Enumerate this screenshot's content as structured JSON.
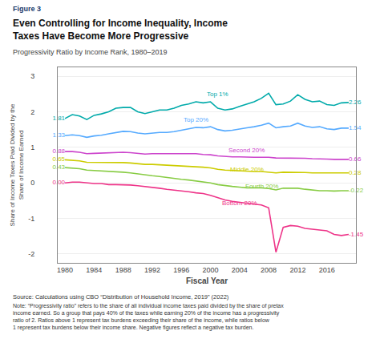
{
  "chart_data": {
    "type": "line",
    "figure_label": "Figure 3",
    "title": "Even Controlling for Income Inequality, Income\nTaxes Have Become More Progressive",
    "subtitle": "Progressivity Ratio by Income Rank, 1980–2019",
    "xlabel": "Fiscal Year",
    "ylabel": "Share of Income Taxes Paid Divided by the\nShare of Income Earned",
    "source": "Source: Calculations using CBO “Distribution of Household Income, 2019” (2022)",
    "note": "Note: “Progressivity ratio” refers to the share of all individual income taxes paid divided by the share of pretax\nincome earned. So a group that pays 40% of the taxes while earning 20% of the income has a progressivity\nratio of 2. Ratios above 1 represent tax burdens exceeding their share of the income, while ratios below\n1 represent tax burdens below their income share. Negative figures reflect a negative tax burden.",
    "x": [
      1980,
      1981,
      1982,
      1983,
      1984,
      1985,
      1986,
      1987,
      1988,
      1989,
      1990,
      1991,
      1992,
      1993,
      1994,
      1995,
      1996,
      1997,
      1998,
      1999,
      2000,
      2001,
      2002,
      2003,
      2004,
      2005,
      2006,
      2007,
      2008,
      2009,
      2010,
      2011,
      2012,
      2013,
      2014,
      2015,
      2016,
      2017,
      2018,
      2019
    ],
    "series": [
      {
        "name": "Top 1%",
        "color": "#00AAAA",
        "values": [
          1.81,
          1.92,
          1.88,
          1.78,
          1.9,
          1.94,
          2.0,
          2.1,
          2.12,
          2.12,
          2.0,
          1.95,
          2.0,
          2.05,
          2.05,
          2.1,
          2.18,
          2.22,
          2.28,
          2.25,
          2.28,
          2.1,
          2.05,
          2.08,
          2.15,
          2.22,
          2.28,
          2.38,
          2.52,
          2.2,
          2.22,
          2.3,
          2.48,
          2.35,
          2.28,
          2.3,
          2.2,
          2.18,
          2.25,
          2.26
        ],
        "value_labels": [
          "1.81",
          null,
          null,
          null,
          null,
          null,
          null,
          null,
          null,
          null,
          null,
          null,
          null,
          null,
          null,
          null,
          null,
          null,
          null,
          null,
          null,
          null,
          null,
          null,
          null,
          null,
          null,
          null,
          null,
          null,
          null,
          null,
          null,
          null,
          null,
          null,
          null,
          null,
          null,
          "2.26"
        ]
      },
      {
        "name": "Top 20%",
        "color": "#55AAFF",
        "values": [
          1.33,
          1.35,
          1.33,
          1.28,
          1.32,
          1.34,
          1.38,
          1.42,
          1.45,
          1.44,
          1.4,
          1.38,
          1.4,
          1.42,
          1.42,
          1.44,
          1.48,
          1.52,
          1.56,
          1.55,
          1.58,
          1.5,
          1.46,
          1.48,
          1.52,
          1.55,
          1.58,
          1.62,
          1.68,
          1.55,
          1.58,
          1.6,
          1.68,
          1.6,
          1.56,
          1.58,
          1.52,
          1.5,
          1.54,
          1.54
        ],
        "value_labels": [
          "1.33",
          null,
          null,
          null,
          null,
          null,
          null,
          null,
          null,
          null,
          null,
          null,
          null,
          null,
          null,
          null,
          null,
          null,
          null,
          null,
          null,
          null,
          null,
          null,
          null,
          null,
          null,
          null,
          null,
          null,
          null,
          null,
          null,
          null,
          null,
          null,
          null,
          null,
          null,
          "1.54"
        ]
      },
      {
        "name": "Second 20%",
        "color": "#CC44CC",
        "values": [
          0.88,
          0.88,
          0.86,
          0.82,
          0.83,
          0.84,
          0.84,
          0.85,
          0.86,
          0.85,
          0.83,
          0.81,
          0.82,
          0.82,
          0.82,
          0.82,
          0.82,
          0.82,
          0.82,
          0.8,
          0.79,
          0.76,
          0.74,
          0.73,
          0.73,
          0.72,
          0.72,
          0.72,
          0.72,
          0.7,
          0.7,
          0.7,
          0.7,
          0.69,
          0.68,
          0.68,
          0.67,
          0.66,
          0.66,
          0.66
        ],
        "value_labels": [
          "0.88",
          null,
          null,
          null,
          null,
          null,
          null,
          null,
          null,
          null,
          null,
          null,
          null,
          null,
          null,
          null,
          null,
          null,
          null,
          null,
          null,
          null,
          null,
          null,
          null,
          null,
          null,
          null,
          null,
          null,
          null,
          null,
          null,
          null,
          null,
          null,
          null,
          null,
          null,
          "0.66"
        ]
      },
      {
        "name": "Middle 20%",
        "color": "#CCCC00",
        "values": [
          0.65,
          0.64,
          0.62,
          0.58,
          0.58,
          0.58,
          0.57,
          0.57,
          0.57,
          0.56,
          0.54,
          0.52,
          0.52,
          0.51,
          0.5,
          0.49,
          0.48,
          0.47,
          0.46,
          0.44,
          0.42,
          0.38,
          0.36,
          0.35,
          0.33,
          0.32,
          0.32,
          0.32,
          0.3,
          0.28,
          0.3,
          0.3,
          0.3,
          0.29,
          0.28,
          0.28,
          0.28,
          0.27,
          0.28,
          0.28
        ],
        "value_labels": [
          "0.65",
          null,
          null,
          null,
          null,
          null,
          null,
          null,
          null,
          null,
          null,
          null,
          null,
          null,
          null,
          null,
          null,
          null,
          null,
          null,
          null,
          null,
          null,
          null,
          null,
          null,
          null,
          null,
          null,
          null,
          null,
          null,
          null,
          null,
          null,
          null,
          null,
          null,
          null,
          "0.28"
        ]
      },
      {
        "name": "Fourth 20%",
        "color": "#88CC44",
        "values": [
          0.43,
          0.42,
          0.4,
          0.36,
          0.35,
          0.34,
          0.32,
          0.31,
          0.3,
          0.28,
          0.25,
          0.22,
          0.2,
          0.18,
          0.15,
          0.12,
          0.1,
          0.08,
          0.05,
          0.02,
          0.0,
          -0.05,
          -0.08,
          -0.1,
          -0.12,
          -0.14,
          -0.14,
          -0.14,
          -0.16,
          -0.2,
          -0.15,
          -0.15,
          -0.15,
          -0.18,
          -0.2,
          -0.22,
          -0.22,
          -0.23,
          -0.22,
          -0.22
        ],
        "value_labels": [
          "0.43",
          null,
          null,
          null,
          null,
          null,
          null,
          null,
          null,
          null,
          null,
          null,
          null,
          null,
          null,
          null,
          null,
          null,
          null,
          null,
          null,
          null,
          null,
          null,
          null,
          null,
          null,
          null,
          null,
          null,
          null,
          null,
          null,
          null,
          null,
          null,
          null,
          null,
          null,
          "-0.22"
        ]
      },
      {
        "name": "Bottom 20%",
        "color": "#EE3388",
        "values": [
          0.0,
          0.02,
          0.02,
          0.0,
          -0.02,
          -0.02,
          -0.05,
          -0.05,
          -0.05,
          -0.06,
          -0.08,
          -0.1,
          -0.12,
          -0.15,
          -0.18,
          -0.2,
          -0.22,
          -0.25,
          -0.28,
          -0.3,
          -0.35,
          -0.42,
          -0.48,
          -0.52,
          -0.55,
          -0.58,
          -0.6,
          -0.62,
          -0.7,
          -1.95,
          -1.25,
          -1.2,
          -1.22,
          -1.28,
          -1.3,
          -1.32,
          -1.35,
          -1.45,
          -1.48,
          -1.45
        ],
        "value_labels": [
          "0.00",
          null,
          null,
          null,
          null,
          null,
          null,
          null,
          null,
          null,
          null,
          null,
          null,
          null,
          null,
          null,
          null,
          null,
          null,
          null,
          null,
          null,
          null,
          null,
          null,
          null,
          null,
          null,
          null,
          null,
          null,
          null,
          null,
          null,
          null,
          null,
          null,
          null,
          null,
          "-1.45"
        ]
      }
    ],
    "annotations": [
      {
        "text": "Top 1%",
        "x": 2001,
        "y": 2.35,
        "color": "#00AAAA"
      },
      {
        "text": "Top 20%",
        "x": 1998,
        "y": 1.62,
        "color": "#55AAFF"
      },
      {
        "text": "Second 20%",
        "x": 2005,
        "y": 0.76,
        "color": "#CC44CC"
      },
      {
        "text": "Middle 20%",
        "x": 2005,
        "y": 0.22,
        "color": "#CCCC00"
      },
      {
        "text": "Fourth 20%",
        "x": 2007,
        "y": -0.25,
        "color": "#88CC44"
      },
      {
        "text": "Bottom 20%",
        "x": 2004,
        "y": -0.72,
        "color": "#EE3388"
      }
    ],
    "xlim": [
      1979,
      2020
    ],
    "xticks": [
      1980,
      1984,
      1988,
      1992,
      1996,
      2000,
      2004,
      2008,
      2012,
      2016
    ],
    "ylim": [
      -2.25,
      3.25
    ],
    "yticks": [
      -2,
      -1,
      0,
      1,
      2,
      3
    ],
    "grid": true
  }
}
